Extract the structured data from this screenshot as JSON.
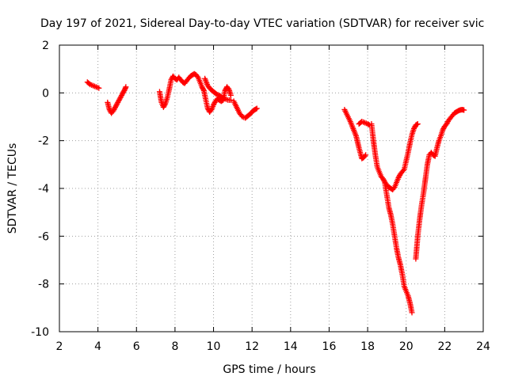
{
  "chart_data": {
    "type": "scatter",
    "title": "Day 197 of 2021, Sidereal Day-to-day VTEC variation (SDTVAR) for receiver svic",
    "xlabel": "GPS time / hours",
    "ylabel": "SDTVAR / TECUs",
    "xlim": [
      2,
      24
    ],
    "ylim": [
      -10,
      2
    ],
    "xticks": [
      2,
      4,
      6,
      8,
      10,
      12,
      14,
      16,
      18,
      20,
      22,
      24
    ],
    "yticks": [
      -10,
      -8,
      -6,
      -4,
      -2,
      0,
      2
    ],
    "grid": true,
    "marker": "+",
    "series": [
      {
        "name": "SDTVAR",
        "color": "#ff0000",
        "segments": [
          [
            [
              3.45,
              0.45
            ],
            [
              3.6,
              0.35
            ],
            [
              3.75,
              0.3
            ],
            [
              3.9,
              0.25
            ],
            [
              4.05,
              0.2
            ]
          ],
          [
            [
              4.5,
              -0.4
            ],
            [
              4.6,
              -0.7
            ],
            [
              4.7,
              -0.85
            ],
            [
              4.8,
              -0.75
            ],
            [
              4.9,
              -0.6
            ],
            [
              5.0,
              -0.45
            ],
            [
              5.1,
              -0.3
            ],
            [
              5.2,
              -0.15
            ],
            [
              5.3,
              0.0
            ],
            [
              5.4,
              0.15
            ],
            [
              5.45,
              0.25
            ]
          ],
          [
            [
              7.2,
              0.05
            ],
            [
              7.3,
              -0.4
            ],
            [
              7.4,
              -0.6
            ],
            [
              7.5,
              -0.45
            ],
            [
              7.6,
              -0.2
            ],
            [
              7.7,
              0.15
            ],
            [
              7.8,
              0.55
            ],
            [
              7.9,
              0.7
            ],
            [
              8.0,
              0.6
            ],
            [
              8.1,
              0.55
            ],
            [
              8.2,
              0.65
            ],
            [
              8.3,
              0.55
            ],
            [
              8.4,
              0.45
            ],
            [
              8.5,
              0.4
            ],
            [
              8.6,
              0.5
            ],
            [
              8.7,
              0.6
            ],
            [
              8.8,
              0.7
            ],
            [
              8.9,
              0.75
            ],
            [
              9.0,
              0.8
            ],
            [
              9.1,
              0.75
            ],
            [
              9.2,
              0.65
            ],
            [
              9.3,
              0.45
            ],
            [
              9.4,
              0.25
            ],
            [
              9.5,
              0.1
            ],
            [
              9.6,
              -0.3
            ],
            [
              9.7,
              -0.65
            ],
            [
              9.8,
              -0.8
            ],
            [
              9.9,
              -0.7
            ],
            [
              10.0,
              -0.5
            ],
            [
              10.1,
              -0.35
            ],
            [
              10.2,
              -0.25
            ],
            [
              10.3,
              -0.3
            ],
            [
              10.4,
              -0.35
            ],
            [
              10.5,
              -0.3
            ],
            [
              10.6,
              0.1
            ],
            [
              10.7,
              0.25
            ],
            [
              10.8,
              0.15
            ],
            [
              10.9,
              -0.1
            ]
          ],
          [
            [
              9.55,
              0.6
            ],
            [
              9.7,
              0.3
            ],
            [
              9.85,
              0.15
            ],
            [
              10.0,
              0.05
            ],
            [
              10.15,
              -0.05
            ],
            [
              10.3,
              -0.1
            ],
            [
              10.45,
              -0.2
            ],
            [
              10.6,
              -0.25
            ],
            [
              10.75,
              -0.3
            ],
            [
              10.9,
              -0.3
            ]
          ],
          [
            [
              11.05,
              -0.35
            ],
            [
              11.2,
              -0.6
            ],
            [
              11.35,
              -0.85
            ],
            [
              11.5,
              -1.0
            ],
            [
              11.65,
              -1.05
            ],
            [
              11.8,
              -0.95
            ],
            [
              11.95,
              -0.85
            ],
            [
              12.05,
              -0.75
            ],
            [
              12.15,
              -0.7
            ],
            [
              12.25,
              -0.65
            ]
          ],
          [
            [
              16.8,
              -0.7
            ],
            [
              16.95,
              -0.95
            ],
            [
              17.1,
              -1.2
            ],
            [
              17.25,
              -1.5
            ],
            [
              17.4,
              -1.8
            ],
            [
              17.55,
              -2.3
            ],
            [
              17.7,
              -2.75
            ],
            [
              17.8,
              -2.7
            ],
            [
              17.9,
              -2.6
            ]
          ],
          [
            [
              17.55,
              -1.3
            ],
            [
              17.7,
              -1.2
            ],
            [
              17.85,
              -1.25
            ],
            [
              18.0,
              -1.3
            ],
            [
              18.1,
              -1.35
            ]
          ],
          [
            [
              18.2,
              -1.3
            ],
            [
              18.3,
              -2.0
            ],
            [
              18.4,
              -2.6
            ],
            [
              18.5,
              -3.1
            ],
            [
              18.6,
              -3.3
            ],
            [
              18.7,
              -3.5
            ],
            [
              18.8,
              -3.6
            ],
            [
              18.9,
              -3.75
            ],
            [
              19.0,
              -3.85
            ],
            [
              19.1,
              -3.95
            ],
            [
              19.2,
              -4.0
            ],
            [
              19.3,
              -4.05
            ],
            [
              19.4,
              -3.95
            ],
            [
              19.5,
              -3.75
            ],
            [
              19.6,
              -3.55
            ],
            [
              19.7,
              -3.4
            ],
            [
              19.8,
              -3.3
            ],
            [
              19.9,
              -3.2
            ],
            [
              20.0,
              -2.85
            ],
            [
              20.1,
              -2.5
            ],
            [
              20.2,
              -2.1
            ],
            [
              20.3,
              -1.75
            ],
            [
              20.4,
              -1.5
            ],
            [
              20.5,
              -1.35
            ],
            [
              20.6,
              -1.3
            ]
          ],
          [
            [
              18.9,
              -3.8
            ],
            [
              19.0,
              -4.3
            ],
            [
              19.1,
              -4.8
            ],
            [
              19.2,
              -5.1
            ],
            [
              19.3,
              -5.5
            ],
            [
              19.4,
              -6.0
            ],
            [
              19.5,
              -6.5
            ],
            [
              19.6,
              -6.9
            ],
            [
              19.7,
              -7.2
            ],
            [
              19.8,
              -7.6
            ],
            [
              19.9,
              -8.1
            ],
            [
              20.0,
              -8.3
            ],
            [
              20.1,
              -8.5
            ],
            [
              20.2,
              -8.8
            ],
            [
              20.3,
              -9.2
            ]
          ],
          [
            [
              20.5,
              -6.95
            ],
            [
              20.6,
              -6.0
            ],
            [
              20.7,
              -5.3
            ],
            [
              20.8,
              -4.7
            ],
            [
              20.9,
              -4.2
            ],
            [
              21.0,
              -3.6
            ],
            [
              21.1,
              -3.0
            ],
            [
              21.2,
              -2.6
            ],
            [
              21.3,
              -2.5
            ],
            [
              21.4,
              -2.6
            ],
            [
              21.5,
              -2.65
            ],
            [
              21.6,
              -2.3
            ],
            [
              21.7,
              -2.0
            ],
            [
              21.8,
              -1.8
            ],
            [
              21.9,
              -1.55
            ],
            [
              22.0,
              -1.4
            ],
            [
              22.1,
              -1.3
            ],
            [
              22.2,
              -1.15
            ],
            [
              22.3,
              -1.05
            ],
            [
              22.4,
              -0.95
            ],
            [
              22.5,
              -0.85
            ],
            [
              22.6,
              -0.8
            ],
            [
              22.7,
              -0.75
            ],
            [
              22.8,
              -0.72
            ],
            [
              22.9,
              -0.7
            ],
            [
              23.0,
              -0.72
            ]
          ]
        ]
      }
    ]
  }
}
